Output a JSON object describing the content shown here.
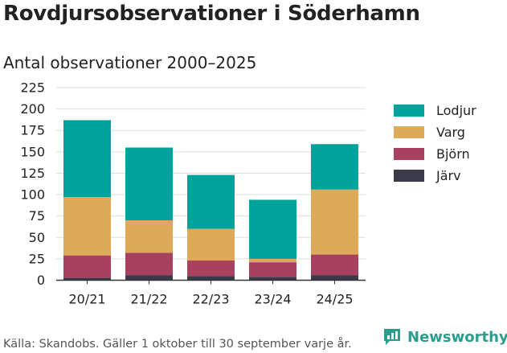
{
  "title": "Rovdjursobservationer i Söderhamn",
  "subtitle": "Antal observationer 2000–2025",
  "source": "Källa: Skandobs. Gäller 1 oktober till 30 september varje år.",
  "brand": "Newsworthy",
  "colors": {
    "Järv": "#3b3a48",
    "Björn": "#a8415f",
    "Varg": "#dcaa58",
    "Lodjur": "#00a39b",
    "brand": "#2a9d8f"
  },
  "chart_data": {
    "type": "bar",
    "stacked": true,
    "categories": [
      "20/21",
      "21/22",
      "22/23",
      "23/24",
      "24/25"
    ],
    "series": [
      {
        "name": "Järv",
        "values": [
          3,
          6,
          5,
          4,
          6
        ]
      },
      {
        "name": "Björn",
        "values": [
          26,
          26,
          18,
          17,
          24
        ]
      },
      {
        "name": "Varg",
        "values": [
          68,
          38,
          37,
          4,
          76
        ]
      },
      {
        "name": "Lodjur",
        "values": [
          90,
          85,
          63,
          69,
          53
        ]
      }
    ],
    "legend": [
      "Lodjur",
      "Varg",
      "Björn",
      "Järv"
    ],
    "legend_position": "right",
    "yticks": [
      0,
      25,
      50,
      75,
      100,
      125,
      150,
      175,
      200,
      225
    ],
    "ylim": [
      0,
      225
    ],
    "grid": true,
    "xlabel": "",
    "ylabel": ""
  }
}
